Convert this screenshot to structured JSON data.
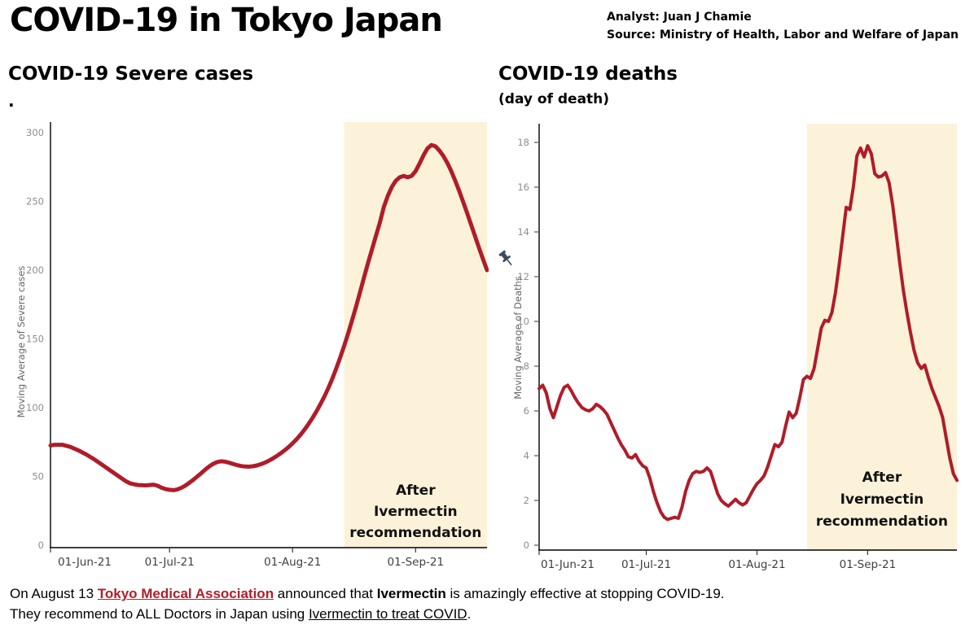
{
  "header": {
    "title": "COVID-19 in Tokyo Japan",
    "analyst": "Analyst: Juan J Chamie",
    "source": "Source: Ministry of Health, Labor and Welfare of Japan"
  },
  "sections": {
    "left_title": "COVID-19 Severe cases",
    "left_subtitle": ".",
    "right_title": "COVID-19 deaths",
    "right_subtitle": "(day of death)"
  },
  "colors": {
    "line": "#b01c29",
    "band": "#fcf2d9",
    "axis": "#000000",
    "x_label": "#404040",
    "y_label": "#8e8e8e",
    "y_title": "#666666",
    "annotation": "#111111",
    "link_red": "#b01e28",
    "pin": "#3d4a5c"
  },
  "footer": {
    "line1": [
      {
        "text": "On August 13 ",
        "style": "plain"
      },
      {
        "text": "Tokyo Medical Association",
        "style": "link"
      },
      {
        "text": " announced that ",
        "style": "plain"
      },
      {
        "text": "Ivermectin",
        "style": "bold"
      },
      {
        "text": " is amazingly effective at stopping COVID-19.",
        "style": "plain"
      }
    ],
    "line2": [
      {
        "text": "They recommend to ALL Doctors in Japan using ",
        "style": "plain"
      },
      {
        "text": "Ivermectin to treat COVID",
        "style": "under"
      },
      {
        "text": ".",
        "style": "plain"
      }
    ]
  },
  "chart_data": [
    {
      "id": "severe",
      "type": "line",
      "title": "COVID-19 Severe cases",
      "ylabel": "Moving Average of Severe cases",
      "x_tick_labels": [
        "01-Jun-21",
        "01-Jul-21",
        "01-Aug-21",
        "01-Sep-21"
      ],
      "x_tick_days": [
        0,
        30,
        61,
        92
      ],
      "x_domain_days": [
        0,
        110
      ],
      "ylim": [
        0,
        300
      ],
      "y_ticks": [
        0,
        50,
        100,
        150,
        200,
        250,
        300
      ],
      "shade_start_day": 74,
      "shade_label": [
        "After",
        "Ivermectin",
        "recommendation"
      ],
      "points": [
        [
          0,
          72.5
        ],
        [
          1,
          73
        ],
        [
          3,
          73
        ],
        [
          5,
          71.5
        ],
        [
          7,
          69
        ],
        [
          9,
          66
        ],
        [
          11,
          62.5
        ],
        [
          13,
          58.5
        ],
        [
          15,
          54.5
        ],
        [
          17,
          50.5
        ],
        [
          19,
          46.5
        ],
        [
          20,
          45
        ],
        [
          21,
          44.3
        ],
        [
          22,
          43.8
        ],
        [
          24,
          43.5
        ],
        [
          26,
          44
        ],
        [
          27,
          43.2
        ],
        [
          28,
          41.8
        ],
        [
          29,
          40.8
        ],
        [
          30,
          40.3
        ],
        [
          31,
          40
        ],
        [
          32,
          40.6
        ],
        [
          33,
          41.8
        ],
        [
          34,
          43.4
        ],
        [
          35,
          45.4
        ],
        [
          36,
          47.6
        ],
        [
          37,
          50
        ],
        [
          38,
          52.4
        ],
        [
          39,
          55
        ],
        [
          40,
          57.3
        ],
        [
          41,
          59.2
        ],
        [
          42,
          60.5
        ],
        [
          43,
          61
        ],
        [
          44,
          60.7
        ],
        [
          45,
          60
        ],
        [
          46,
          59.1
        ],
        [
          47,
          58.2
        ],
        [
          48,
          57.6
        ],
        [
          49,
          57.2
        ],
        [
          50,
          57.1
        ],
        [
          51,
          57.4
        ],
        [
          52,
          58
        ],
        [
          53,
          58.9
        ],
        [
          54,
          60
        ],
        [
          55,
          61.4
        ],
        [
          56,
          63
        ],
        [
          57,
          64.8
        ],
        [
          58,
          66.8
        ],
        [
          59,
          69
        ],
        [
          60,
          71.4
        ],
        [
          61,
          74
        ],
        [
          62,
          77
        ],
        [
          63,
          80.3
        ],
        [
          64,
          84
        ],
        [
          65,
          88
        ],
        [
          66,
          92.4
        ],
        [
          67,
          97.2
        ],
        [
          68,
          102.4
        ],
        [
          69,
          108
        ],
        [
          70,
          114.2
        ],
        [
          71,
          121
        ],
        [
          72,
          128.4
        ],
        [
          73,
          136.4
        ],
        [
          74,
          145
        ],
        [
          75,
          154
        ],
        [
          76,
          163.5
        ],
        [
          77,
          173.5
        ],
        [
          78,
          184
        ],
        [
          79,
          194.5
        ],
        [
          80,
          205
        ],
        [
          81,
          215
        ],
        [
          82,
          225
        ],
        [
          83,
          234.5
        ],
        [
          84,
          246
        ],
        [
          85,
          254
        ],
        [
          86,
          260.5
        ],
        [
          87,
          265
        ],
        [
          88,
          267.5
        ],
        [
          89,
          268.5
        ],
        [
          90,
          267.5
        ],
        [
          91,
          268.5
        ],
        [
          92,
          272
        ],
        [
          93,
          277.5
        ],
        [
          94,
          283.5
        ],
        [
          95,
          288.5
        ],
        [
          96,
          291
        ],
        [
          97,
          290
        ],
        [
          98,
          287
        ],
        [
          99,
          283
        ],
        [
          100,
          278
        ],
        [
          101,
          272
        ],
        [
          102,
          265
        ],
        [
          103,
          257.5
        ],
        [
          104,
          249.5
        ],
        [
          105,
          241.5
        ],
        [
          106,
          233
        ],
        [
          107,
          224.5
        ],
        [
          108,
          216
        ],
        [
          109,
          208
        ],
        [
          110,
          200
        ]
      ]
    },
    {
      "id": "deaths",
      "type": "line",
      "title": "COVID-19 deaths (day of death)",
      "ylabel": "Moving Average of Deaths",
      "x_tick_labels": [
        "01-Jun-21",
        "01-Jul-21",
        "01-Aug-21",
        "01-Sep-21"
      ],
      "x_tick_days": [
        0,
        30,
        61,
        92
      ],
      "x_domain_days": [
        0,
        117
      ],
      "ylim": [
        0,
        18
      ],
      "y_ticks": [
        0,
        2,
        4,
        6,
        8,
        10,
        12,
        14,
        16,
        18
      ],
      "shade_start_day": 75,
      "shade_label": [
        "After",
        "Ivermectin",
        "recommendation"
      ],
      "points": [
        [
          0,
          7.0
        ],
        [
          1,
          7.15
        ],
        [
          2,
          6.8
        ],
        [
          3,
          6.1
        ],
        [
          4,
          5.7
        ],
        [
          5,
          6.2
        ],
        [
          6,
          6.7
        ],
        [
          7,
          7.05
        ],
        [
          8,
          7.15
        ],
        [
          9,
          6.9
        ],
        [
          10,
          6.6
        ],
        [
          11,
          6.35
        ],
        [
          12,
          6.15
        ],
        [
          13,
          6.05
        ],
        [
          14,
          6.0
        ],
        [
          15,
          6.1
        ],
        [
          16,
          6.3
        ],
        [
          17,
          6.2
        ],
        [
          18,
          6.05
        ],
        [
          19,
          5.85
        ],
        [
          20,
          5.5
        ],
        [
          21,
          5.15
        ],
        [
          22,
          4.8
        ],
        [
          23,
          4.5
        ],
        [
          24,
          4.25
        ],
        [
          25,
          3.95
        ],
        [
          26,
          3.9
        ],
        [
          27,
          4.05
        ],
        [
          28,
          3.75
        ],
        [
          29,
          3.55
        ],
        [
          30,
          3.45
        ],
        [
          31,
          3.0
        ],
        [
          32,
          2.4
        ],
        [
          33,
          1.9
        ],
        [
          34,
          1.5
        ],
        [
          35,
          1.25
        ],
        [
          36,
          1.15
        ],
        [
          37,
          1.2
        ],
        [
          38,
          1.25
        ],
        [
          39,
          1.2
        ],
        [
          40,
          1.7
        ],
        [
          41,
          2.4
        ],
        [
          42,
          2.9
        ],
        [
          43,
          3.2
        ],
        [
          44,
          3.3
        ],
        [
          45,
          3.25
        ],
        [
          46,
          3.3
        ],
        [
          47,
          3.45
        ],
        [
          48,
          3.3
        ],
        [
          49,
          2.8
        ],
        [
          50,
          2.3
        ],
        [
          51,
          2.0
        ],
        [
          52,
          1.85
        ],
        [
          53,
          1.75
        ],
        [
          54,
          1.9
        ],
        [
          55,
          2.05
        ],
        [
          56,
          1.9
        ],
        [
          57,
          1.8
        ],
        [
          58,
          1.9
        ],
        [
          59,
          2.2
        ],
        [
          60,
          2.5
        ],
        [
          61,
          2.75
        ],
        [
          62,
          2.9
        ],
        [
          63,
          3.1
        ],
        [
          64,
          3.5
        ],
        [
          65,
          4.0
        ],
        [
          66,
          4.5
        ],
        [
          67,
          4.4
        ],
        [
          68,
          4.6
        ],
        [
          69,
          5.3
        ],
        [
          70,
          5.95
        ],
        [
          71,
          5.7
        ],
        [
          72,
          5.9
        ],
        [
          73,
          6.6
        ],
        [
          74,
          7.4
        ],
        [
          75,
          7.55
        ],
        [
          76,
          7.45
        ],
        [
          77,
          7.9
        ],
        [
          78,
          8.8
        ],
        [
          79,
          9.7
        ],
        [
          80,
          10.05
        ],
        [
          81,
          10.0
        ],
        [
          82,
          10.4
        ],
        [
          83,
          11.3
        ],
        [
          84,
          12.5
        ],
        [
          85,
          13.8
        ],
        [
          86,
          15.1
        ],
        [
          87,
          15.0
        ],
        [
          88,
          16.0
        ],
        [
          89,
          17.4
        ],
        [
          90,
          17.75
        ],
        [
          91,
          17.35
        ],
        [
          92,
          17.85
        ],
        [
          93,
          17.5
        ],
        [
          94,
          16.6
        ],
        [
          95,
          16.45
        ],
        [
          96,
          16.5
        ],
        [
          97,
          16.65
        ],
        [
          98,
          16.2
        ],
        [
          99,
          15.2
        ],
        [
          100,
          13.9
        ],
        [
          101,
          12.6
        ],
        [
          102,
          11.4
        ],
        [
          103,
          10.4
        ],
        [
          104,
          9.5
        ],
        [
          105,
          8.7
        ],
        [
          106,
          8.15
        ],
        [
          107,
          7.9
        ],
        [
          108,
          8.05
        ],
        [
          109,
          7.5
        ],
        [
          110,
          7.0
        ],
        [
          111,
          6.6
        ],
        [
          112,
          6.2
        ],
        [
          113,
          5.7
        ],
        [
          114,
          4.8
        ],
        [
          115,
          3.9
        ],
        [
          116,
          3.2
        ],
        [
          117,
          2.9
        ]
      ]
    }
  ]
}
